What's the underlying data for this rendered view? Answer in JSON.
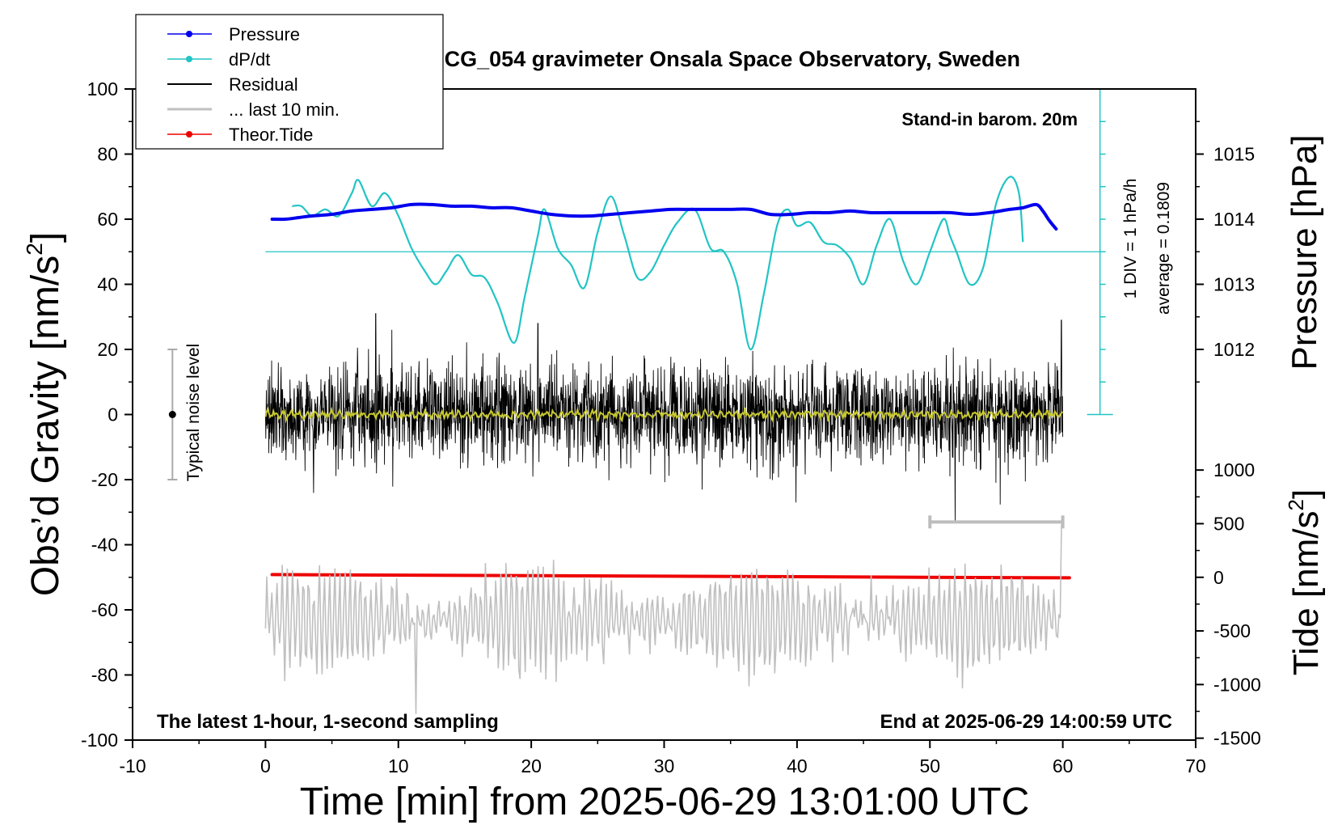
{
  "chart_data": {
    "type": "line",
    "title": "SCG_054 gravimeter Onsala Space Observatory, Sweden",
    "xlabel": "Time [min] from 2025-06-29 13:01:00 UTC",
    "xlim": [
      -10,
      70
    ],
    "x_ticks": [
      -10,
      0,
      10,
      20,
      30,
      40,
      50,
      60,
      70
    ],
    "left_axis": {
      "label": "Obs’d Gravity [nm/s2]",
      "label_main": "Obs’d Gravity [nm/s",
      "label_sup": "2",
      "label_close": "]",
      "ylim": [
        -100,
        100
      ],
      "ticks": [
        -100,
        -80,
        -60,
        -40,
        -20,
        0,
        20,
        40,
        60,
        80,
        100
      ]
    },
    "pressure_axis": {
      "label": "Pressure [hPa]",
      "ticks": [
        1012,
        1013,
        1014,
        1015
      ]
    },
    "tide_axis": {
      "label": "Tide [nm/s2]",
      "label_main": "Tide [nm/s",
      "label_sup": "2",
      "label_close": "]",
      "ylim": [
        -1500,
        1000
      ],
      "ticks": [
        -1500,
        -1000,
        -500,
        0,
        500,
        1000
      ]
    },
    "legend": {
      "position": "top-left",
      "entries": [
        {
          "name": "Pressure",
          "color": "#0000ee",
          "style": "line-dot"
        },
        {
          "name": "dP/dt",
          "color": "#22c4c4",
          "style": "line-dot"
        },
        {
          "name": "Residual",
          "color": "#000000",
          "style": "line"
        },
        {
          "name": "... last 10 min.",
          "color": "#c0c0c0",
          "style": "line"
        },
        {
          "name": "Theor.Tide",
          "color": "#ee0000",
          "style": "line-dot"
        }
      ]
    },
    "annotations": {
      "barometer": "Stand-in barom. 20m",
      "scale_div": "1 DIV = 1 hPa/h",
      "average": "average = 0.1809",
      "noise": "Typical noise level",
      "bottom_left": "The latest 1-hour, 1-second sampling",
      "bottom_right": "End at 2025-06-29 14:00:59 UTC"
    },
    "noise_bar": {
      "x": -7,
      "y": 0,
      "range": [
        -20,
        20
      ]
    },
    "last10_bar": {
      "x_range": [
        50,
        60
      ],
      "y": -33
    },
    "dpdt_zero_line_y": 50,
    "series": [
      {
        "name": "Pressure",
        "color": "#0000ee",
        "x": [
          0.5,
          1.5,
          2.5,
          3.5,
          5,
          6.5,
          8,
          9.5,
          11,
          12.5,
          14,
          15.5,
          17,
          18.5,
          20,
          21.5,
          23,
          24.5,
          26,
          27.5,
          29,
          30.5,
          32,
          33.5,
          35,
          36.5,
          38,
          39.5,
          41,
          42.5,
          44,
          45.5,
          47,
          48.5,
          50,
          51.5,
          53,
          54.5,
          56,
          57,
          58,
          58.5,
          59,
          59.5
        ],
        "y": [
          60,
          60,
          60.5,
          61,
          61.5,
          62.5,
          63,
          63.5,
          64.5,
          64.5,
          64,
          64,
          63.5,
          63.5,
          62.5,
          61.5,
          61,
          61,
          61.5,
          62,
          62.5,
          63,
          63,
          63,
          63,
          63,
          61.5,
          61.5,
          62,
          62,
          62.5,
          62,
          62,
          62,
          62,
          62,
          61.5,
          62,
          63,
          63.5,
          64.5,
          62.5,
          59.5,
          57
        ]
      },
      {
        "name": "dP/dt",
        "color": "#22c4c4",
        "x": [
          2,
          2.7,
          3.5,
          4.5,
          5.5,
          6.5,
          7,
          8,
          9,
          10,
          11,
          12,
          12.8,
          13.6,
          14.5,
          15.5,
          16.5,
          17.5,
          18.7,
          19.5,
          20.5,
          21,
          22,
          23,
          24,
          25,
          26,
          27,
          28,
          29,
          30,
          31,
          32.3,
          33.5,
          34.5,
          35.5,
          36.5,
          37.5,
          38.5,
          39.3,
          40,
          41,
          42,
          43,
          44,
          45,
          46,
          47,
          48,
          49,
          50,
          51,
          51.5,
          52,
          53,
          54,
          55,
          56,
          56.7,
          57
        ],
        "y": [
          64,
          64,
          61,
          63,
          61,
          68,
          72,
          64,
          68,
          61,
          51,
          44,
          40,
          44,
          49,
          43,
          42,
          34,
          22,
          36,
          55,
          63,
          51,
          46,
          39,
          56,
          67,
          55,
          42,
          44,
          52,
          59,
          63,
          51,
          50,
          40,
          20,
          37,
          58,
          63,
          58,
          59,
          53,
          52,
          48,
          40,
          52,
          60,
          47,
          40,
          50,
          60,
          55,
          50,
          40,
          45,
          65,
          73,
          68,
          53
        ]
      },
      {
        "name": "Residual",
        "color": "#000000",
        "x_range": [
          0,
          60
        ],
        "typical_range": [
          -20,
          20
        ],
        "extremes": [
          [
            8.3,
            31
          ],
          [
            20.5,
            28
          ],
          [
            51.9,
            -33
          ],
          [
            59.9,
            29
          ]
        ]
      },
      {
        "name": "Residual (smoothed)",
        "color": "#c8c830",
        "x_range": [
          0,
          60
        ],
        "y": 0
      },
      {
        "name": "... last 10 min.",
        "color": "#c0c0c0",
        "x_range": [
          0,
          60
        ],
        "y_center": -63,
        "typical_range": [
          -83,
          -44
        ],
        "extremes": [
          [
            11.3,
            -92
          ],
          [
            59.95,
            -34
          ]
        ]
      },
      {
        "name": "Theor.Tide",
        "color": "#ee0000",
        "axis": "tide",
        "x": [
          0.5,
          60.5
        ],
        "y": [
          25,
          -5
        ]
      }
    ]
  }
}
